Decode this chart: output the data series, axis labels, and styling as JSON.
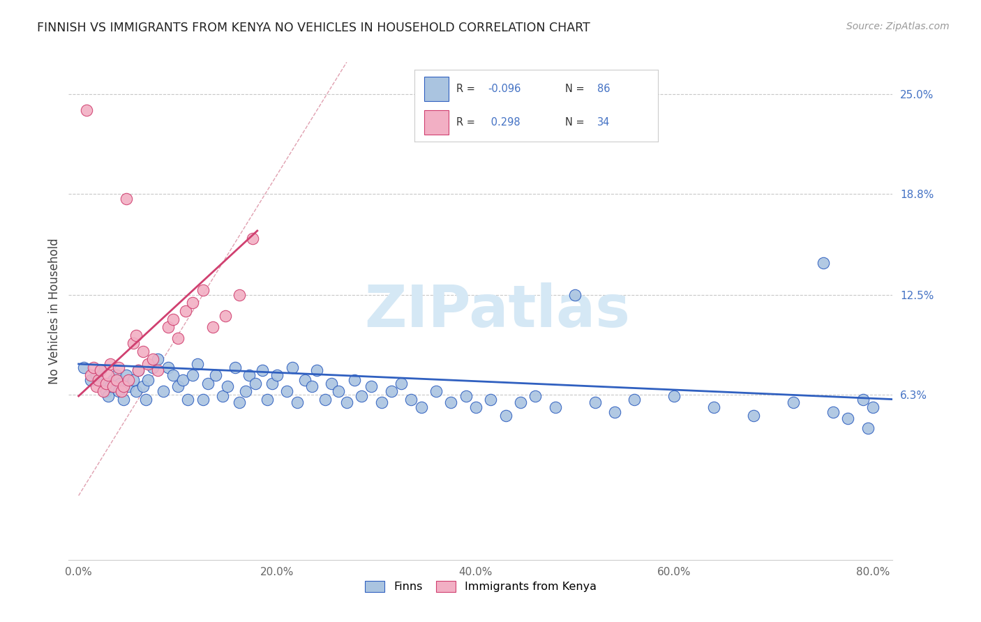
{
  "title": "FINNISH VS IMMIGRANTS FROM KENYA NO VEHICLES IN HOUSEHOLD CORRELATION CHART",
  "source": "Source: ZipAtlas.com",
  "xlabel_ticks": [
    "0.0%",
    "20.0%",
    "40.0%",
    "60.0%",
    "80.0%"
  ],
  "xlabel_tick_vals": [
    0.0,
    0.2,
    0.4,
    0.6,
    0.8
  ],
  "ylabel_ticks": [
    "6.3%",
    "12.5%",
    "18.8%",
    "25.0%"
  ],
  "ylabel_tick_vals": [
    0.063,
    0.125,
    0.188,
    0.25
  ],
  "xlim": [
    -0.01,
    0.82
  ],
  "ylim": [
    -0.04,
    0.27
  ],
  "legend_label1": "Finns",
  "legend_label2": "Immigrants from Kenya",
  "color_finns": "#aac4e0",
  "color_kenya": "#f2afc4",
  "color_line_finns": "#3060c0",
  "color_line_kenya": "#d04070",
  "color_dashed": "#e0a0b0",
  "color_grid": "#c8c8c8",
  "color_right_labels": "#4472c4",
  "color_legend_R": "#4472c4",
  "color_legend_N": "#4472c4",
  "watermark_color": "#d5e8f5",
  "finns_x": [
    0.005,
    0.012,
    0.018,
    0.022,
    0.025,
    0.028,
    0.03,
    0.032,
    0.035,
    0.038,
    0.04,
    0.042,
    0.045,
    0.048,
    0.05,
    0.055,
    0.058,
    0.06,
    0.065,
    0.068,
    0.07,
    0.075,
    0.08,
    0.085,
    0.09,
    0.095,
    0.1,
    0.105,
    0.11,
    0.115,
    0.12,
    0.125,
    0.13,
    0.138,
    0.145,
    0.15,
    0.158,
    0.162,
    0.168,
    0.172,
    0.178,
    0.185,
    0.19,
    0.195,
    0.2,
    0.21,
    0.215,
    0.22,
    0.228,
    0.235,
    0.24,
    0.248,
    0.255,
    0.262,
    0.27,
    0.278,
    0.285,
    0.295,
    0.305,
    0.315,
    0.325,
    0.335,
    0.345,
    0.36,
    0.375,
    0.39,
    0.4,
    0.415,
    0.43,
    0.445,
    0.46,
    0.48,
    0.5,
    0.52,
    0.54,
    0.56,
    0.6,
    0.64,
    0.68,
    0.72,
    0.75,
    0.76,
    0.775,
    0.79,
    0.795,
    0.8
  ],
  "finns_y": [
    0.08,
    0.072,
    0.075,
    0.078,
    0.07,
    0.065,
    0.062,
    0.068,
    0.072,
    0.075,
    0.065,
    0.07,
    0.06,
    0.075,
    0.068,
    0.072,
    0.065,
    0.078,
    0.068,
    0.06,
    0.072,
    0.08,
    0.085,
    0.065,
    0.08,
    0.075,
    0.068,
    0.072,
    0.06,
    0.075,
    0.082,
    0.06,
    0.07,
    0.075,
    0.062,
    0.068,
    0.08,
    0.058,
    0.065,
    0.075,
    0.07,
    0.078,
    0.06,
    0.07,
    0.075,
    0.065,
    0.08,
    0.058,
    0.072,
    0.068,
    0.078,
    0.06,
    0.07,
    0.065,
    0.058,
    0.072,
    0.062,
    0.068,
    0.058,
    0.065,
    0.07,
    0.06,
    0.055,
    0.065,
    0.058,
    0.062,
    0.055,
    0.06,
    0.05,
    0.058,
    0.062,
    0.055,
    0.125,
    0.058,
    0.052,
    0.06,
    0.062,
    0.055,
    0.05,
    0.058,
    0.145,
    0.052,
    0.048,
    0.06,
    0.042,
    0.055
  ],
  "kenya_x": [
    0.008,
    0.012,
    0.015,
    0.018,
    0.02,
    0.022,
    0.025,
    0.028,
    0.03,
    0.032,
    0.035,
    0.038,
    0.04,
    0.043,
    0.045,
    0.048,
    0.05,
    0.055,
    0.058,
    0.06,
    0.065,
    0.07,
    0.075,
    0.08,
    0.09,
    0.095,
    0.1,
    0.108,
    0.115,
    0.125,
    0.135,
    0.148,
    0.162,
    0.175
  ],
  "kenya_y": [
    0.24,
    0.075,
    0.08,
    0.068,
    0.072,
    0.078,
    0.065,
    0.07,
    0.075,
    0.082,
    0.068,
    0.072,
    0.08,
    0.065,
    0.068,
    0.185,
    0.072,
    0.095,
    0.1,
    0.078,
    0.09,
    0.082,
    0.085,
    0.078,
    0.105,
    0.11,
    0.098,
    0.115,
    0.12,
    0.128,
    0.105,
    0.112,
    0.125,
    0.16
  ],
  "finns_line_x": [
    0.0,
    0.82
  ],
  "finns_line_y": [
    0.082,
    0.06
  ],
  "kenya_line_x": [
    0.0,
    0.18
  ],
  "kenya_line_y": [
    0.062,
    0.165
  ],
  "diag_line_x": [
    0.0,
    0.27
  ],
  "diag_line_y": [
    0.0,
    0.27
  ]
}
